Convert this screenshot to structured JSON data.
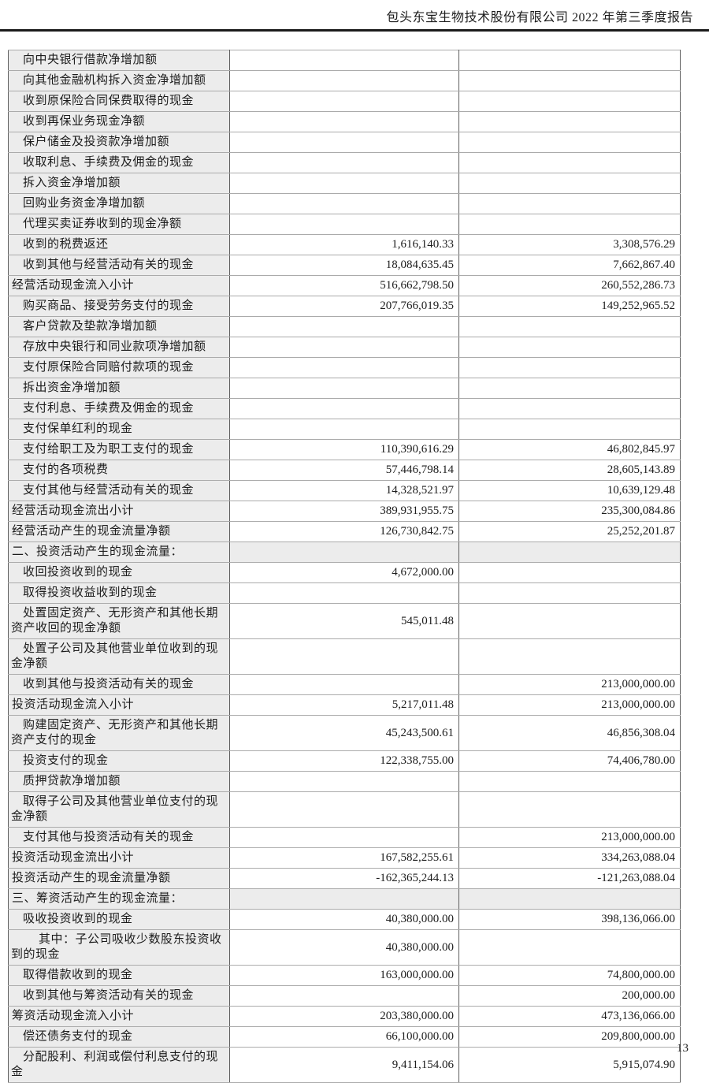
{
  "colors": {
    "label_bg": "#ececec",
    "grid_dark": "#5e5e5e",
    "grid_light": "#ababab",
    "text": "#1c1c1c",
    "rule": "#1b1b1b"
  },
  "header": {
    "title": "包头东宝生物技术股份有限公司 2022 年第三季度报告"
  },
  "page": {
    "number": "13"
  },
  "table": {
    "rows": [
      {
        "type": "item",
        "label": "向中央银行借款净增加额",
        "current": "",
        "prior": ""
      },
      {
        "type": "item",
        "label": "向其他金融机构拆入资金净增加额",
        "current": "",
        "prior": ""
      },
      {
        "type": "item",
        "label": "收到原保险合同保费取得的现金",
        "current": "",
        "prior": ""
      },
      {
        "type": "item",
        "label": "收到再保业务现金净额",
        "current": "",
        "prior": ""
      },
      {
        "type": "item",
        "label": "保户储金及投资款净增加额",
        "current": "",
        "prior": ""
      },
      {
        "type": "item",
        "label": "收取利息、手续费及佣金的现金",
        "current": "",
        "prior": ""
      },
      {
        "type": "item",
        "label": "拆入资金净增加额",
        "current": "",
        "prior": ""
      },
      {
        "type": "item",
        "label": "回购业务资金净增加额",
        "current": "",
        "prior": ""
      },
      {
        "type": "item",
        "label": "代理买卖证券收到的现金净额",
        "current": "",
        "prior": ""
      },
      {
        "type": "item",
        "label": "收到的税费返还",
        "current": "1,616,140.33",
        "prior": "3,308,576.29"
      },
      {
        "type": "item",
        "label": "收到其他与经营活动有关的现金",
        "current": "18,084,635.45",
        "prior": "7,662,867.40"
      },
      {
        "type": "subtotal",
        "label": "经营活动现金流入小计",
        "current": "516,662,798.50",
        "prior": "260,552,286.73"
      },
      {
        "type": "item",
        "label": "购买商品、接受劳务支付的现金",
        "current": "207,766,019.35",
        "prior": "149,252,965.52"
      },
      {
        "type": "item",
        "label": "客户贷款及垫款净增加额",
        "current": "",
        "prior": ""
      },
      {
        "type": "item",
        "label": "存放中央银行和同业款项净增加额",
        "current": "",
        "prior": ""
      },
      {
        "type": "item",
        "label": "支付原保险合同赔付款项的现金",
        "current": "",
        "prior": ""
      },
      {
        "type": "item",
        "label": "拆出资金净增加额",
        "current": "",
        "prior": ""
      },
      {
        "type": "item",
        "label": "支付利息、手续费及佣金的现金",
        "current": "",
        "prior": ""
      },
      {
        "type": "item",
        "label": "支付保单红利的现金",
        "current": "",
        "prior": ""
      },
      {
        "type": "item",
        "label": "支付给职工及为职工支付的现金",
        "current": "110,390,616.29",
        "prior": "46,802,845.97"
      },
      {
        "type": "item",
        "label": "支付的各项税费",
        "current": "57,446,798.14",
        "prior": "28,605,143.89"
      },
      {
        "type": "item",
        "label": "支付其他与经营活动有关的现金",
        "current": "14,328,521.97",
        "prior": "10,639,129.48"
      },
      {
        "type": "subtotal",
        "label": "经营活动现金流出小计",
        "current": "389,931,955.75",
        "prior": "235,300,084.86"
      },
      {
        "type": "subtotal",
        "label": "经营活动产生的现金流量净额",
        "current": "126,730,842.75",
        "prior": "25,252,201.87"
      },
      {
        "type": "section",
        "label": "二、投资活动产生的现金流量：",
        "current": "",
        "prior": ""
      },
      {
        "type": "item",
        "label": "收回投资收到的现金",
        "current": "4,672,000.00",
        "prior": ""
      },
      {
        "type": "item",
        "label": "取得投资收益收到的现金",
        "current": "",
        "prior": ""
      },
      {
        "type": "item",
        "label": "处置固定资产、无形资产和其他长期资产收回的现金净额",
        "current": "545,011.48",
        "prior": ""
      },
      {
        "type": "item",
        "label": "处置子公司及其他营业单位收到的现金净额",
        "current": "",
        "prior": ""
      },
      {
        "type": "item",
        "label": "收到其他与投资活动有关的现金",
        "current": "",
        "prior": "213,000,000.00"
      },
      {
        "type": "subtotal",
        "label": "投资活动现金流入小计",
        "current": "5,217,011.48",
        "prior": "213,000,000.00"
      },
      {
        "type": "item",
        "label": "购建固定资产、无形资产和其他长期资产支付的现金",
        "current": "45,243,500.61",
        "prior": "46,856,308.04"
      },
      {
        "type": "item",
        "label": "投资支付的现金",
        "current": "122,338,755.00",
        "prior": "74,406,780.00"
      },
      {
        "type": "item",
        "label": "质押贷款净增加额",
        "current": "",
        "prior": ""
      },
      {
        "type": "item",
        "label": "取得子公司及其他营业单位支付的现金净额",
        "current": "",
        "prior": ""
      },
      {
        "type": "item",
        "label": "支付其他与投资活动有关的现金",
        "current": "",
        "prior": "213,000,000.00"
      },
      {
        "type": "subtotal",
        "label": "投资活动现金流出小计",
        "current": "167,582,255.61",
        "prior": "334,263,088.04"
      },
      {
        "type": "subtotal",
        "label": "投资活动产生的现金流量净额",
        "current": "-162,365,244.13",
        "prior": "-121,263,088.04"
      },
      {
        "type": "section",
        "label": "三、筹资活动产生的现金流量：",
        "current": "",
        "prior": ""
      },
      {
        "type": "item",
        "label": "吸收投资收到的现金",
        "current": "40,380,000.00",
        "prior": "398,136,066.00"
      },
      {
        "type": "subitem",
        "label": "其中：子公司吸收少数股东投资收到的现金",
        "current": "40,380,000.00",
        "prior": ""
      },
      {
        "type": "item",
        "label": "取得借款收到的现金",
        "current": "163,000,000.00",
        "prior": "74,800,000.00"
      },
      {
        "type": "item",
        "label": "收到其他与筹资活动有关的现金",
        "current": "",
        "prior": "200,000.00"
      },
      {
        "type": "subtotal",
        "label": "筹资活动现金流入小计",
        "current": "203,380,000.00",
        "prior": "473,136,066.00"
      },
      {
        "type": "item",
        "label": "偿还债务支付的现金",
        "current": "66,100,000.00",
        "prior": "209,800,000.00"
      },
      {
        "type": "item",
        "label": "分配股利、利润或偿付利息支付的现金",
        "current": "9,411,154.06",
        "prior": "5,915,074.90"
      }
    ]
  }
}
